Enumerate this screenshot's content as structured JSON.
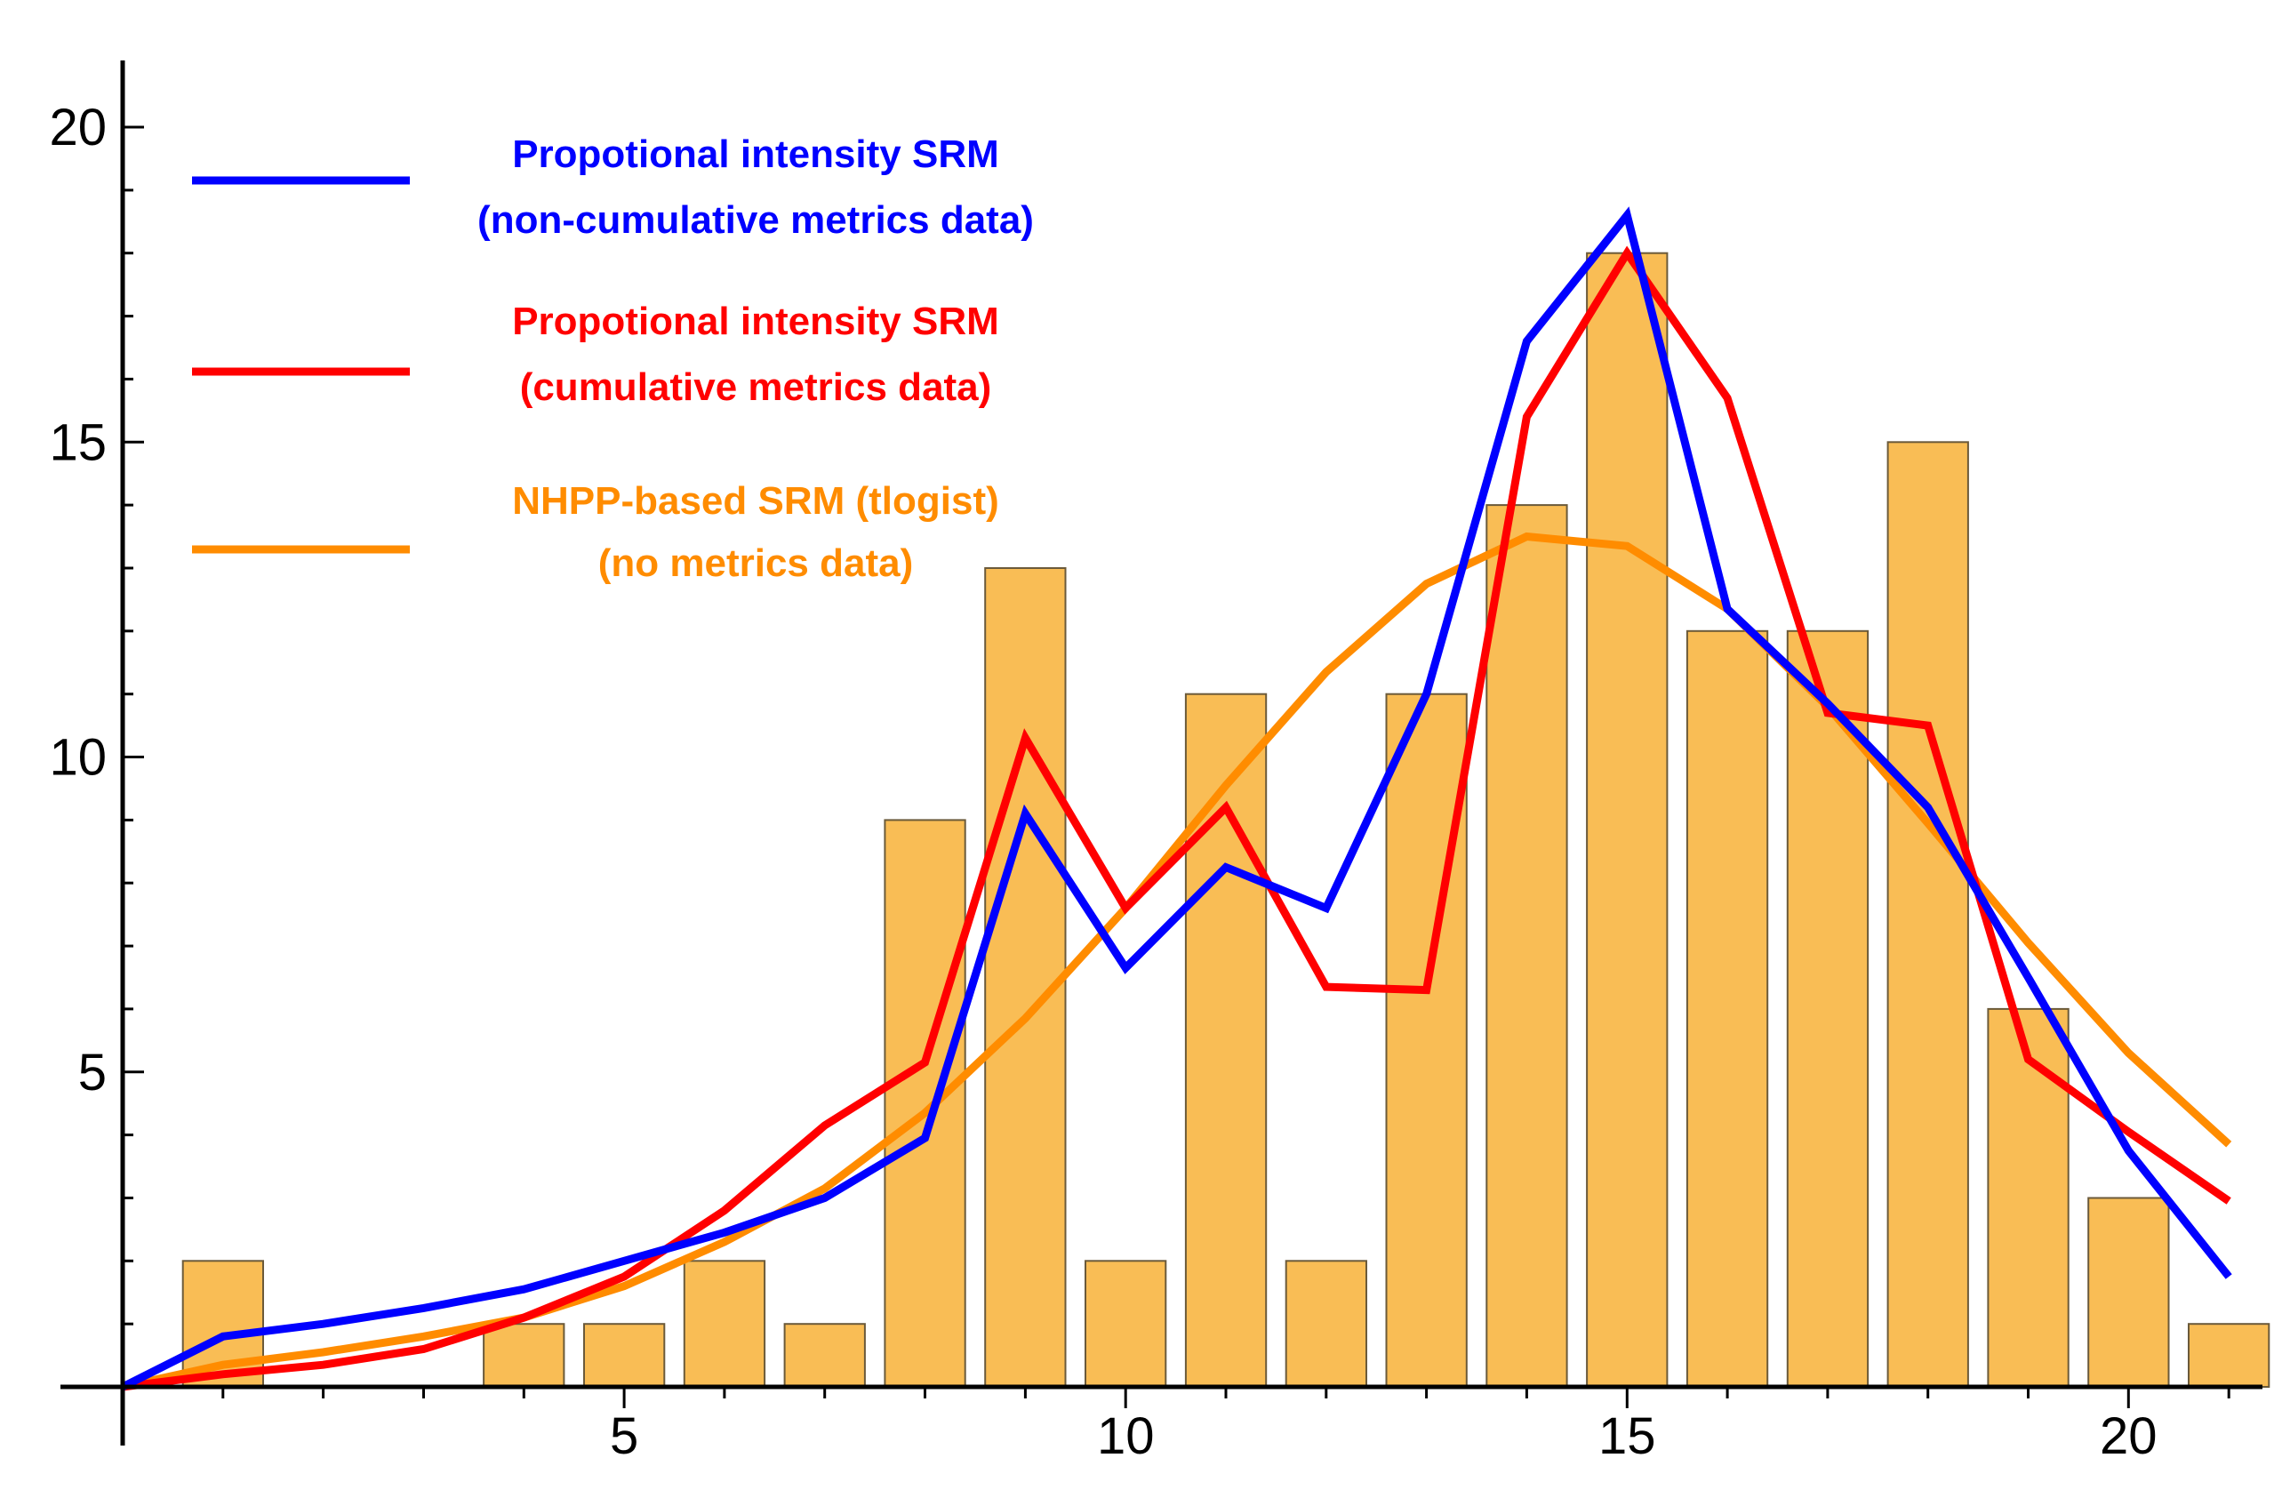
{
  "chart_data": {
    "type": "bar",
    "title": "",
    "xlabel": "",
    "ylabel": "",
    "xlim": [
      0,
      21.3
    ],
    "ylim": [
      0,
      20.9
    ],
    "x_ticks": [
      5,
      10,
      15,
      20
    ],
    "y_ticks": [
      5,
      10,
      15,
      20
    ],
    "bar_color": "#f9bd55",
    "bar_edge_color": "#6b5a3a",
    "bars": {
      "x": [
        1,
        2,
        3,
        4,
        5,
        6,
        7,
        8,
        9,
        10,
        11,
        12,
        13,
        14,
        15,
        16,
        17,
        18,
        19,
        20,
        21
      ],
      "values": [
        2,
        0,
        0,
        1,
        1,
        2,
        1,
        9,
        13,
        2,
        11,
        2,
        11,
        14,
        18,
        12,
        12,
        15,
        6,
        3,
        1
      ]
    },
    "series": [
      {
        "name": "Propotional intensity SRM (non-cumulative metrics data)",
        "color": "#0000ff",
        "x": [
          0,
          1,
          2,
          3,
          4,
          5,
          6,
          7,
          8,
          9,
          10,
          11,
          12,
          13,
          14,
          15,
          16,
          17,
          18,
          19,
          20,
          21
        ],
        "values": [
          0,
          0.8,
          1.0,
          1.25,
          1.55,
          2.0,
          2.45,
          3.0,
          3.95,
          9.1,
          6.65,
          8.25,
          7.6,
          11.0,
          16.6,
          18.6,
          12.35,
          10.85,
          9.2,
          6.5,
          3.75,
          1.75
        ]
      },
      {
        "name": "Propotional intensity SRM (cumulative metrics data)",
        "color": "#ff0000",
        "x": [
          0,
          1,
          2,
          3,
          4,
          5,
          6,
          7,
          8,
          9,
          10,
          11,
          12,
          13,
          14,
          15,
          16,
          17,
          18,
          19,
          20,
          21
        ],
        "values": [
          0,
          0.2,
          0.35,
          0.6,
          1.1,
          1.75,
          2.8,
          4.15,
          5.15,
          10.3,
          7.6,
          9.2,
          6.35,
          6.3,
          15.4,
          18.0,
          15.7,
          10.7,
          10.5,
          5.2,
          4.05,
          2.95
        ]
      },
      {
        "name": "NHPP-based SRM (tlogist) (no metrics data)",
        "color": "#ff8c00",
        "x": [
          0,
          1,
          2,
          3,
          4,
          5,
          6,
          7,
          8,
          9,
          10,
          11,
          12,
          13,
          14,
          15,
          16,
          17,
          18,
          19,
          20,
          21
        ],
        "values": [
          0,
          0.35,
          0.55,
          0.8,
          1.1,
          1.6,
          2.3,
          3.15,
          4.35,
          5.85,
          7.6,
          9.55,
          11.35,
          12.75,
          13.5,
          13.35,
          12.35,
          10.8,
          8.95,
          7.05,
          5.3,
          3.85
        ]
      }
    ],
    "legend": {
      "position": "top-left",
      "entries": [
        {
          "line1": "Propotional intensity SRM",
          "line2": "(non-cumulative metrics data)",
          "color": "#0000ff"
        },
        {
          "line1": "Propotional intensity SRM",
          "line2": "(cumulative metrics data)",
          "color": "#ff0000"
        },
        {
          "line1": "NHPP-based SRM (tlogist)",
          "line2": "(no metrics data)",
          "color": "#ff8c00"
        }
      ]
    }
  }
}
